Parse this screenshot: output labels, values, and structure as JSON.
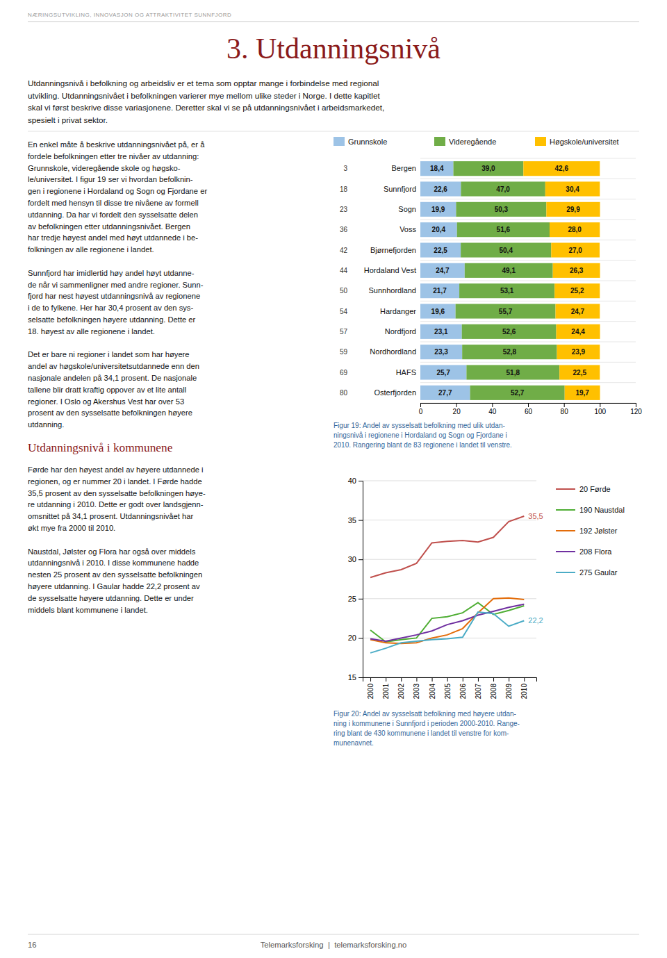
{
  "header": "NÆRINGSUTVIKLING, INNOVASJON OG ATTRAKTIVITET SUNNFJORD",
  "title": "3. Utdanningsnivå",
  "intro_text": "Utdanningsnivå i befolkning og arbeidsliv er et tema som opptar mange i forbindelse med regional\nutvikling. Utdanningsnivået i befolkningen varierer mye mellom ulike steder i Norge. I dette kapitlet\nskal vi først beskrive disse variasjonene. Deretter skal vi se på utdanningsnivået i arbeidsmarkedet,\nspesielt i privat sektor.",
  "left_text_upper": [
    "En enkel måte å beskrive utdanningsnivået på, er å\nfordele befolkningen etter tre nivåer av utdanning:\nGrunnskole, videregående skole og høgsko-\nle/universitet. I figur 19 ser vi hvordan befolknin-\ngen i regionene i Hordaland og Sogn og Fjordane er\nfordelt med hensyn til disse tre nivåene av formell\nutdanning. Da har vi fordelt den sysselsatte delen\nav befolkningen etter utdanningsnivået. Bergen\nhar tredje høyest andel med høyt utdannede i be-\nfolkningen av alle regionene i landet.",
    "Sunnfjord har imidlertid høy andel høyt utdanne-\nde når vi sammenligner med andre regioner. Sunn-\nfjord har nest høyest utdanningsnivå av regionene\ni de to fylkene. Her har 30,4 prosent av den sys-\nselsatte befolkningen høyere utdanning. Dette er\n18. høyest av alle regionene i landet.",
    "Det er bare ni regioner i landet som har høyere\nandel av høgskole/universitetsutdannede enn den\nnasjonale andelen på 34,1 prosent. De nasjonale\ntallene blir dratt kraftig oppover av et lite antall\nregioner. I Oslo og Akershus Vest har over 53\nprosent av den sysselsatte befolkningen høyere\nutdanning."
  ],
  "section_title": "Utdanningsnivå i kommunene",
  "left_text_lower": [
    "Førde har den høyest andel av høyere utdannede i\nregionen, og er nummer 20 i landet. I Førde hadde\n35,5 prosent av den sysselsatte befolkningen høye-\nre utdanning i 2010. Dette er godt over landsgjenn-\nomsnittet på 34,1 prosent. Utdanningsnivået har\nøkt mye fra 2000 til 2010.",
    "Naustdal, Jølster og Flora har også over middels\nutdanningsnivå i 2010. I disse kommunene hadde\nnesten 25 prosent av den sysselsatte befolkningen\nhøyere utdanning. I Gaular hadde 22,2 prosent av\nde sysselsatte høyere utdanning. Dette er under\nmiddels blant kommunene i landet."
  ],
  "footer_left": "16",
  "footer_center": "Telemarksforsking  |  telemarksforsking.no",
  "chart_data": [
    {
      "type": "bar",
      "orientation": "horizontal",
      "stacked": true,
      "data_labels": true,
      "legend": "top",
      "caption": "Figur 19: Andel av sysselsatt befolkning med ulik utdan-\nningsnivå i regionene i Hordaland og Sogn og Fjordane i\n2010. Rangering blant de 83 regionene i landet til venstre.",
      "categories": [
        "Bergen",
        "Sunnfjord",
        "Sogn",
        "Voss",
        "Bjørnefjorden",
        "Hordaland Vest",
        "Sunnhordland",
        "Hardanger",
        "Nordfjord",
        "Nordhordland",
        "HAFS",
        "Osterfjorden"
      ],
      "ranks": [
        3,
        18,
        23,
        36,
        42,
        44,
        50,
        54,
        57,
        59,
        69,
        80
      ],
      "xlim": [
        0,
        120
      ],
      "xticks": [
        0,
        20,
        40,
        60,
        80,
        100,
        120
      ],
      "series": [
        {
          "name": "Grunnskole",
          "color": "#9dc3e6",
          "values": [
            18.4,
            22.6,
            19.9,
            20.4,
            22.5,
            24.7,
            21.7,
            19.6,
            23.1,
            23.3,
            25.7,
            27.7
          ],
          "value_labels": [
            "18,4",
            "22,6",
            "19,9",
            "20,4",
            "22,5",
            "24,7",
            "21,7",
            "19,6",
            "23,1",
            "23,3",
            "25,7",
            "27,7"
          ]
        },
        {
          "name": "Videregående",
          "color": "#70ad47",
          "values": [
            39.0,
            47.0,
            50.3,
            51.6,
            50.4,
            49.1,
            53.1,
            55.7,
            52.6,
            52.8,
            51.8,
            52.7
          ],
          "value_labels": [
            "39,0",
            "47,0",
            "50,3",
            "51,6",
            "50,4",
            "49,1",
            "53,1",
            "55,7",
            "52,6",
            "52,8",
            "51,8",
            "52,7"
          ]
        },
        {
          "name": "Høgskole/universitet",
          "color": "#ffc000",
          "values": [
            42.6,
            30.4,
            29.9,
            28.0,
            27.0,
            26.3,
            25.2,
            24.7,
            24.4,
            23.9,
            22.5,
            19.7
          ],
          "value_labels": [
            "42,6",
            "30,4",
            "29,9",
            "28,0",
            "27,0",
            "26,3",
            "25,2",
            "24,7",
            "24,4",
            "23,9",
            "22,5",
            "19,7"
          ]
        }
      ]
    },
    {
      "type": "line",
      "grid": true,
      "legend": "right",
      "caption": "Figur 20: Andel av sysselsatt befolkning med høyere utdan-\nning i kommunene i Sunnfjord i perioden 2000-2010. Range-\nring blant de 430 kommunene i landet til venstre for kom-\nmunenavnet.",
      "x": [
        2000,
        2001,
        2002,
        2003,
        2004,
        2005,
        2006,
        2007,
        2008,
        2009,
        2010
      ],
      "xlim": [
        1999.5,
        2010.8
      ],
      "xticks": [
        2000,
        2001,
        2002,
        2003,
        2004,
        2005,
        2006,
        2007,
        2008,
        2009,
        2010
      ],
      "ylim": [
        15,
        40
      ],
      "yticks": [
        15,
        20,
        25,
        30,
        35,
        40
      ],
      "series": [
        {
          "name": "20 Førde",
          "color": "#c0504d",
          "values": [
            27.7,
            28.3,
            28.7,
            29.5,
            32.1,
            32.3,
            32.4,
            32.2,
            32.8,
            34.8,
            35.5
          ],
          "value_labels": [
            null,
            null,
            null,
            null,
            null,
            null,
            null,
            null,
            null,
            null,
            "35,5"
          ]
        },
        {
          "name": "190 Naustdal",
          "color": "#4ead33",
          "values": [
            21.0,
            19.5,
            19.8,
            20.0,
            22.5,
            22.7,
            23.2,
            24.5,
            23.0,
            23.5,
            24.1
          ]
        },
        {
          "name": "192 Jølster",
          "color": "#e36c09",
          "values": [
            19.8,
            19.4,
            19.3,
            19.4,
            20.0,
            20.4,
            21.2,
            23.2,
            25.0,
            25.1,
            24.9
          ]
        },
        {
          "name": "208 Flora",
          "color": "#7030a0",
          "values": [
            19.9,
            19.6,
            20.0,
            20.4,
            20.9,
            21.7,
            22.2,
            22.9,
            23.4,
            23.9,
            24.3
          ]
        },
        {
          "name": "275 Gaular",
          "color": "#4bacc6",
          "values": [
            18.1,
            18.7,
            19.4,
            19.6,
            19.8,
            19.9,
            20.1,
            23.3,
            23.1,
            21.5,
            22.2
          ],
          "value_labels": [
            null,
            null,
            null,
            null,
            null,
            null,
            null,
            null,
            null,
            null,
            "22,2"
          ]
        }
      ]
    }
  ]
}
